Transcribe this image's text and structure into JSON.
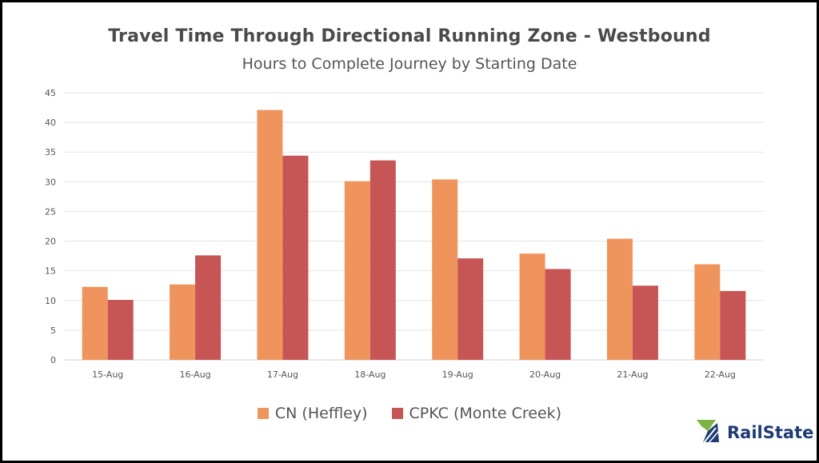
{
  "chart_data": {
    "type": "bar",
    "title": "Travel Time Through Directional Running Zone - Westbound",
    "subtitle": "Hours to Complete Journey by Starting Date",
    "categories": [
      "15-Aug",
      "16-Aug",
      "17-Aug",
      "18-Aug",
      "19-Aug",
      "20-Aug",
      "21-Aug",
      "22-Aug"
    ],
    "series": [
      {
        "name": "CN (Heffley)",
        "color": "#f0945e",
        "values": [
          12.3,
          12.7,
          42.1,
          30.1,
          30.4,
          17.9,
          20.4,
          16.1
        ]
      },
      {
        "name": "CPKC (Monte Creek)",
        "color": "#c75555",
        "values": [
          10.1,
          17.6,
          34.4,
          33.6,
          17.1,
          15.3,
          12.5,
          11.6
        ]
      }
    ],
    "ylim": [
      0,
      45
    ],
    "yticks": [
      0,
      5,
      10,
      15,
      20,
      25,
      30,
      35,
      40,
      45
    ],
    "grid": true,
    "legend_position": "bottom"
  },
  "logo": {
    "text": "RailState",
    "icon": "railstate-logo-icon"
  }
}
